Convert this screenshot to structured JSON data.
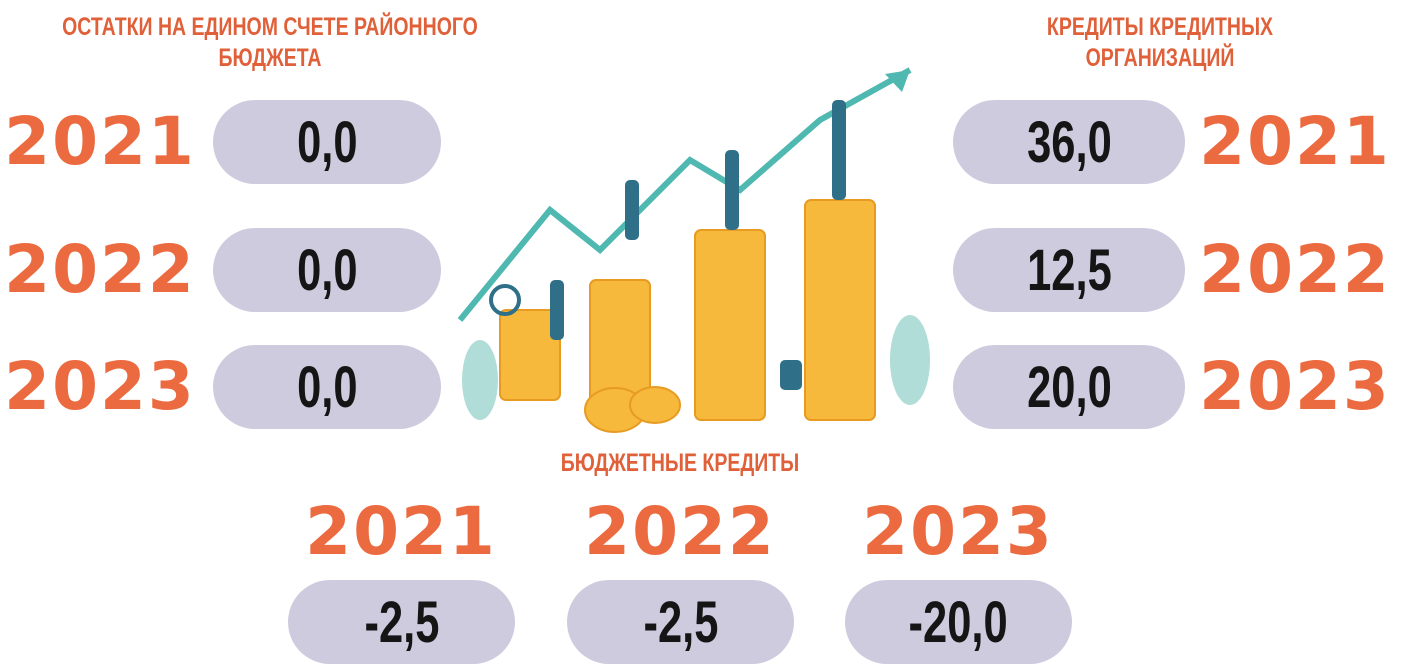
{
  "left": {
    "title": [
      "ОСТАТКИ НА ЕДИНОМ СЧЕТЕ  РАЙОННОГО",
      "БЮДЖЕТА"
    ],
    "rows": [
      {
        "year": "2021",
        "value": "0,0"
      },
      {
        "year": "2022",
        "value": "0,0"
      },
      {
        "year": "2023",
        "value": "0,0"
      }
    ]
  },
  "right": {
    "title": [
      "КРЕДИТЫ КРЕДИТНЫХ",
      "ОРГАНИЗАЦИЙ"
    ],
    "rows": [
      {
        "year": "2021",
        "value": "36,0"
      },
      {
        "year": "2022",
        "value": "12,5"
      },
      {
        "year": "2023",
        "value": "20,0"
      }
    ]
  },
  "bottom": {
    "title": [
      "БЮДЖЕТНЫЕ КРЕДИТЫ"
    ],
    "rows": [
      {
        "year": "2021",
        "value": "-2,5"
      },
      {
        "year": "2022",
        "value": "-2,5"
      },
      {
        "year": "2023",
        "value": "-20,0"
      }
    ]
  }
}
